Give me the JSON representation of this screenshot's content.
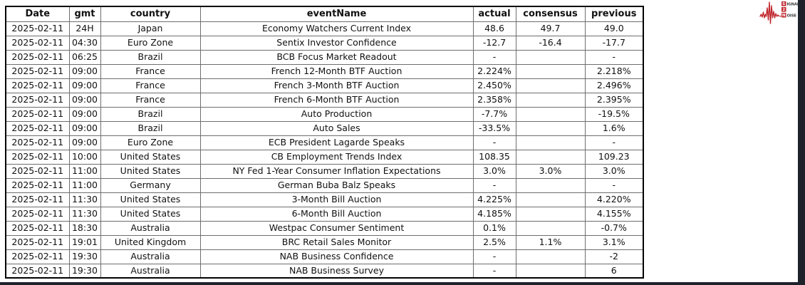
{
  "colors": {
    "accent_red": "#c0272d",
    "edge_dark": "#1e222a",
    "grid_line": "#6e6e6e",
    "outer_border": "#000000"
  },
  "logo": {
    "name": "signal-2-noise",
    "s_letter": "S",
    "ignal_text": "IGNAL",
    "two_letter": "2",
    "n_letter": "N",
    "oise_text": "OISE"
  },
  "table": {
    "columns": [
      "Date",
      "gmt",
      "country",
      "eventName",
      "actual",
      "consensus",
      "previous"
    ],
    "rows": [
      [
        "2025-02-11",
        "24H",
        "Japan",
        "Economy Watchers Current Index",
        "48.6",
        "49.7",
        "49.0"
      ],
      [
        "2025-02-11",
        "04:30",
        "Euro Zone",
        "Sentix Investor Confidence",
        "-12.7",
        "-16.4",
        "-17.7"
      ],
      [
        "2025-02-11",
        "06:25",
        "Brazil",
        "BCB Focus Market Readout",
        "-",
        "",
        "-"
      ],
      [
        "2025-02-11",
        "09:00",
        "France",
        "French 12-Month BTF Auction",
        "2.224%",
        "",
        "2.218%"
      ],
      [
        "2025-02-11",
        "09:00",
        "France",
        "French 3-Month BTF Auction",
        "2.450%",
        "",
        "2.496%"
      ],
      [
        "2025-02-11",
        "09:00",
        "France",
        "French 6-Month BTF Auction",
        "2.358%",
        "",
        "2.395%"
      ],
      [
        "2025-02-11",
        "09:00",
        "Brazil",
        "Auto Production",
        "-7.7%",
        "",
        "-19.5%"
      ],
      [
        "2025-02-11",
        "09:00",
        "Brazil",
        "Auto Sales",
        "-33.5%",
        "",
        "1.6%"
      ],
      [
        "2025-02-11",
        "09:00",
        "Euro Zone",
        "ECB President Lagarde Speaks",
        "-",
        "",
        "-"
      ],
      [
        "2025-02-11",
        "10:00",
        "United States",
        "CB Employment Trends Index",
        "108.35",
        "",
        "109.23"
      ],
      [
        "2025-02-11",
        "11:00",
        "United States",
        "NY Fed 1-Year Consumer Inflation Expectations",
        "3.0%",
        "3.0%",
        "3.0%"
      ],
      [
        "2025-02-11",
        "11:00",
        "Germany",
        "German Buba Balz Speaks",
        "-",
        "",
        "-"
      ],
      [
        "2025-02-11",
        "11:30",
        "United States",
        "3-Month Bill Auction",
        "4.225%",
        "",
        "4.220%"
      ],
      [
        "2025-02-11",
        "11:30",
        "United States",
        "6-Month Bill Auction",
        "4.185%",
        "",
        "4.155%"
      ],
      [
        "2025-02-11",
        "18:30",
        "Australia",
        "Westpac Consumer Sentiment",
        "0.1%",
        "",
        "-0.7%"
      ],
      [
        "2025-02-11",
        "19:01",
        "United Kingdom",
        "BRC Retail Sales Monitor",
        "2.5%",
        "1.1%",
        "3.1%"
      ],
      [
        "2025-02-11",
        "19:30",
        "Australia",
        "NAB Business Confidence",
        "-",
        "",
        "-2"
      ],
      [
        "2025-02-11",
        "19:30",
        "Australia",
        "NAB Business Survey",
        "-",
        "",
        "6"
      ]
    ]
  }
}
